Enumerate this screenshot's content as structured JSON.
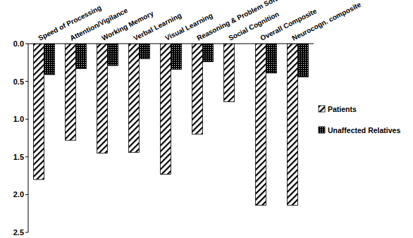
{
  "chart_data": {
    "type": "bar",
    "categories": [
      "Speed of Processing",
      "Attention/Vigilance",
      "Working Memory",
      "Verbal Learning",
      "Visual Learning",
      "Reasoning & Problem Solving",
      "Social Cognition",
      "Overall Composite",
      "Neurocogn. composite"
    ],
    "series": [
      {
        "name": "Patients",
        "color": "#000000",
        "values": [
          1.8,
          1.28,
          1.45,
          1.44,
          1.73,
          1.2,
          0.77,
          2.14,
          2.14
        ]
      },
      {
        "name": "Unaffected Relatives",
        "color": "#000000",
        "values": [
          0.41,
          0.33,
          0.29,
          0.2,
          0.34,
          0.24,
          null,
          0.39,
          0.44
        ]
      }
    ],
    "ylim": [
      0,
      2.5
    ],
    "yticks": [
      {
        "value": 0,
        "label": "0.0"
      },
      {
        "value": 0.5,
        "label": "0.5"
      },
      {
        "value": 1,
        "label": "1.0"
      },
      {
        "value": 1.5,
        "label": "1.5"
      },
      {
        "value": 2,
        "label": "2.0"
      },
      {
        "value": 2.5,
        "label": "2.5"
      }
    ],
    "legend": "right"
  }
}
